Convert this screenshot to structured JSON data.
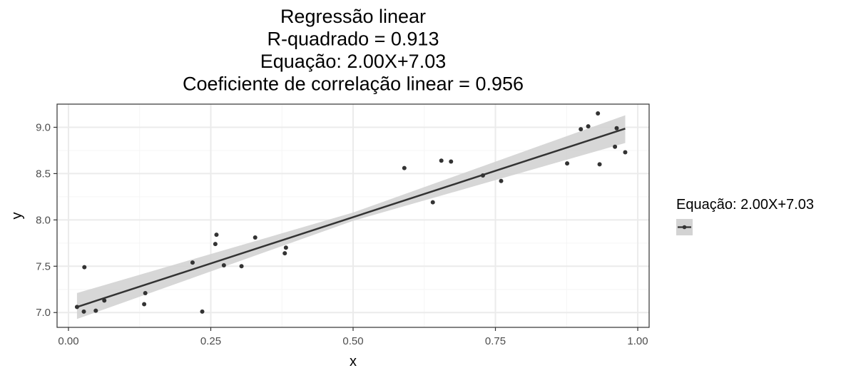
{
  "chart_data": {
    "type": "scatter",
    "title_lines": [
      "Regressão linear",
      "R-quadrado = 0.913",
      "Equação: 2.00X+7.03",
      "Coeficiente de correlação linear = 0.956"
    ],
    "xlabel": "x",
    "ylabel": "y",
    "xlim": [
      -0.02,
      1.02
    ],
    "ylim": [
      6.84,
      9.25
    ],
    "x_ticks": [
      0.0,
      0.25,
      0.5,
      0.75,
      1.0
    ],
    "x_tick_labels": [
      "0.00",
      "0.25",
      "0.50",
      "0.75",
      "1.00"
    ],
    "y_ticks": [
      7.0,
      7.5,
      8.0,
      8.5,
      9.0
    ],
    "y_tick_labels": [
      "7.0",
      "7.5",
      "8.0",
      "8.5",
      "9.0"
    ],
    "grid": true,
    "legend_position": "right",
    "legend_title": "Equação: 2.00X+7.03",
    "colors": {
      "points": "#333333",
      "line": "#333333",
      "confidence_band": "#d3d3d3",
      "grid_major": "#ebebeb",
      "grid_minor": "#f5f5f5",
      "panel_border": "#333333"
    },
    "regression": {
      "slope": 2.0,
      "intercept": 7.03,
      "x_range": [
        0.015,
        0.978
      ]
    },
    "band": {
      "x": [
        0.015,
        0.5,
        0.978
      ],
      "lower": [
        6.93,
        7.99,
        8.83
      ],
      "upper": [
        7.21,
        8.08,
        9.13
      ]
    },
    "points": [
      {
        "x": 0.015,
        "y": 7.06
      },
      {
        "x": 0.027,
        "y": 7.01
      },
      {
        "x": 0.028,
        "y": 7.49
      },
      {
        "x": 0.048,
        "y": 7.02
      },
      {
        "x": 0.063,
        "y": 7.13
      },
      {
        "x": 0.133,
        "y": 7.09
      },
      {
        "x": 0.135,
        "y": 7.21
      },
      {
        "x": 0.218,
        "y": 7.54
      },
      {
        "x": 0.235,
        "y": 7.01
      },
      {
        "x": 0.258,
        "y": 7.74
      },
      {
        "x": 0.26,
        "y": 7.84
      },
      {
        "x": 0.273,
        "y": 7.51
      },
      {
        "x": 0.304,
        "y": 7.5
      },
      {
        "x": 0.328,
        "y": 7.81
      },
      {
        "x": 0.38,
        "y": 7.64
      },
      {
        "x": 0.382,
        "y": 7.7
      },
      {
        "x": 0.59,
        "y": 8.56
      },
      {
        "x": 0.64,
        "y": 8.19
      },
      {
        "x": 0.655,
        "y": 8.64
      },
      {
        "x": 0.672,
        "y": 8.63
      },
      {
        "x": 0.728,
        "y": 8.48
      },
      {
        "x": 0.76,
        "y": 8.42
      },
      {
        "x": 0.876,
        "y": 8.61
      },
      {
        "x": 0.9,
        "y": 8.98
      },
      {
        "x": 0.913,
        "y": 9.01
      },
      {
        "x": 0.93,
        "y": 9.15
      },
      {
        "x": 0.933,
        "y": 8.6
      },
      {
        "x": 0.96,
        "y": 8.79
      },
      {
        "x": 0.963,
        "y": 8.99
      },
      {
        "x": 0.978,
        "y": 8.73
      }
    ]
  }
}
